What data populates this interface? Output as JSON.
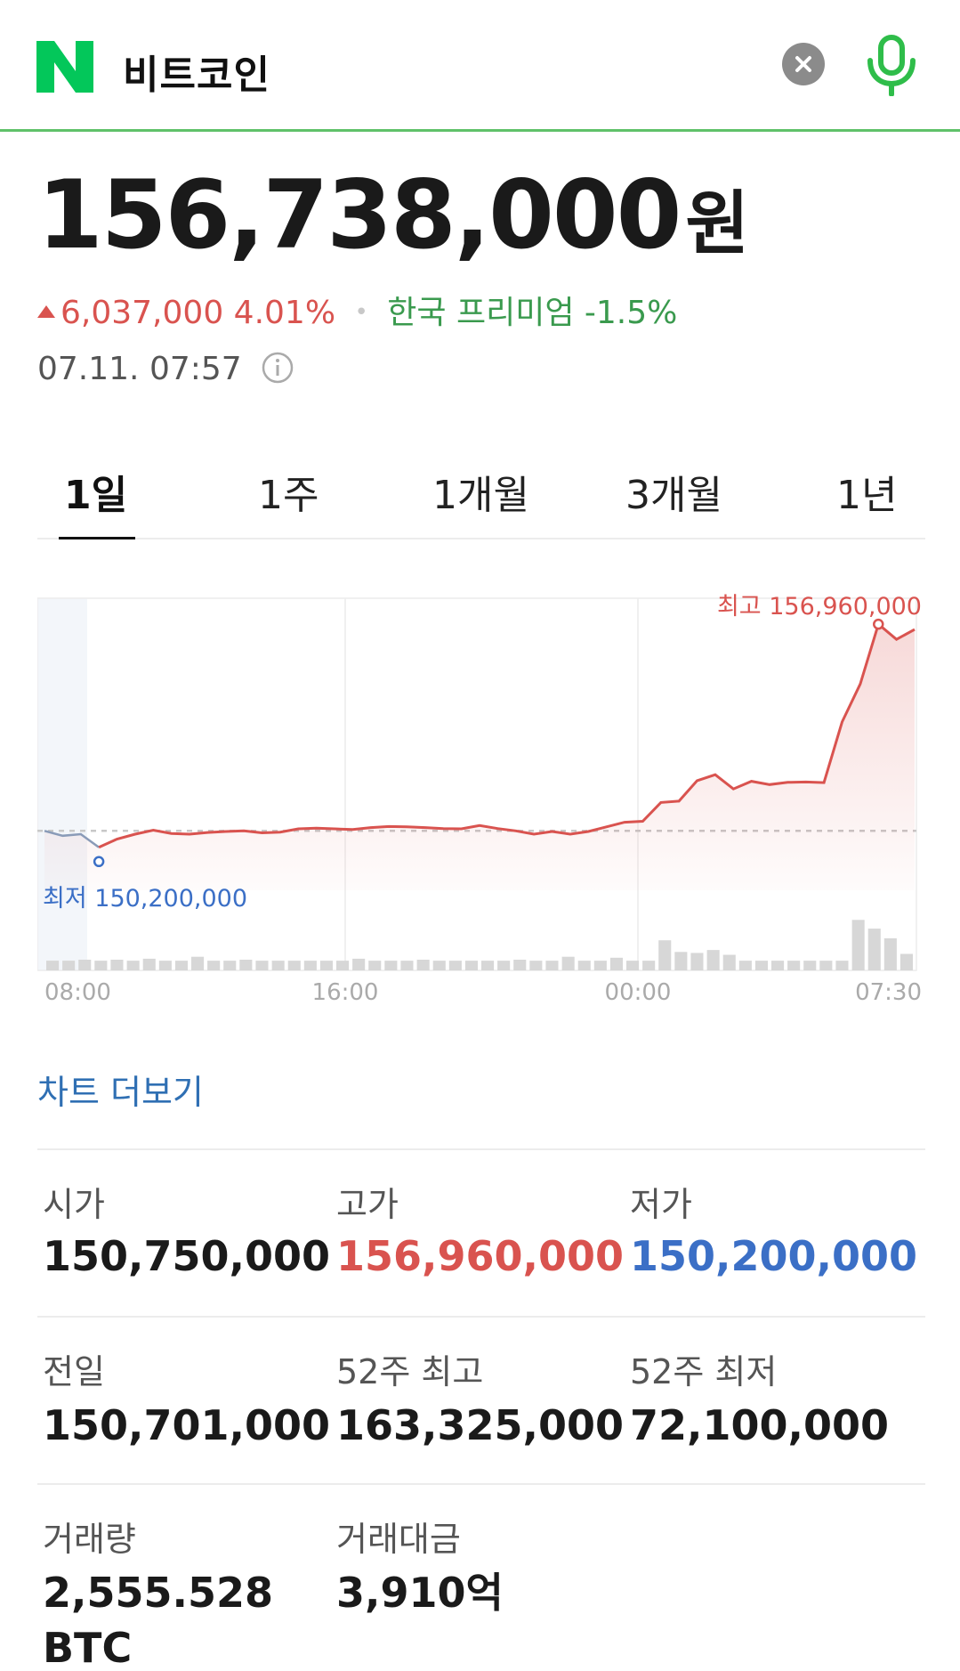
{
  "header": {
    "logo_letter": "N",
    "query": "비트코인",
    "clear_icon": "close-circle-icon",
    "mic_icon": "microphone-icon",
    "accent_color": "#5fc169"
  },
  "price": {
    "value": "156,738,000",
    "unit": "원",
    "change_amount": "6,037,000",
    "change_percent": "4.01%",
    "premium": "한국 프리미엄 -1.5%",
    "timestamp": "07.11. 07:57"
  },
  "tabs": [
    {
      "label": "1일",
      "active": true
    },
    {
      "label": "1주",
      "active": false
    },
    {
      "label": "1개월",
      "active": false
    },
    {
      "label": "3개월",
      "active": false
    },
    {
      "label": "1년",
      "active": false
    }
  ],
  "chart_data": {
    "type": "line",
    "x_tick_labels": [
      "08:00",
      "16:00",
      "00:00",
      "07:30"
    ],
    "high_label": "최고 156,960,000",
    "low_label": "최저 150,200,000",
    "high": 156960000,
    "low": 150200000,
    "reference_line": 150701000,
    "line_color": "#d9534f",
    "low_color": "#3b6fc6",
    "series": [
      {
        "values": [
          150700000,
          150550000,
          150600000,
          150200000,
          150450000,
          150600000,
          150720000,
          150620000,
          150600000,
          150650000,
          150680000,
          150700000,
          150640000,
          150660000,
          150760000,
          150780000,
          150760000,
          150740000,
          150800000,
          150830000,
          150820000,
          150800000,
          150770000,
          150760000,
          150860000,
          150770000,
          150700000,
          150600000,
          150680000,
          150600000,
          150680000,
          150820000,
          150960000,
          150990000,
          151560000,
          151600000,
          152220000,
          152400000,
          151970000,
          152200000,
          152100000,
          152170000,
          152180000,
          152160000,
          154000000,
          155150000,
          156960000,
          156500000,
          156800000
        ]
      }
    ],
    "volume": [
      1,
      1,
      1.1,
      1,
      1.1,
      1,
      1.2,
      1,
      1,
      1.4,
      1,
      1,
      1.1,
      1,
      1,
      1,
      1,
      1,
      1,
      1.2,
      1,
      1,
      1,
      1.1,
      1,
      1,
      1,
      1,
      1,
      1.1,
      1,
      1,
      1.4,
      1,
      1,
      1.3,
      1,
      1,
      3.1,
      1.9,
      1.8,
      2.1,
      1.6,
      1,
      1,
      1,
      1,
      1,
      1,
      1,
      5.2,
      4.3,
      3.3,
      1.7
    ]
  },
  "more_link": "차트 더보기",
  "stats": {
    "open_label": "시가",
    "open_value": "150,750,000",
    "high_label": "고가",
    "high_value": "156,960,000",
    "low_label": "저가",
    "low_value": "150,200,000",
    "prev_label": "전일",
    "prev_value": "150,701,000",
    "w52_high_label": "52주 최고",
    "w52_high_value": "163,325,000",
    "w52_low_label": "52주 최저",
    "w52_low_value": "72,100,000",
    "volume_label": "거래량",
    "volume_value": "2,555.528 BTC",
    "amount_label": "거래대금",
    "amount_value": "3,910억"
  }
}
